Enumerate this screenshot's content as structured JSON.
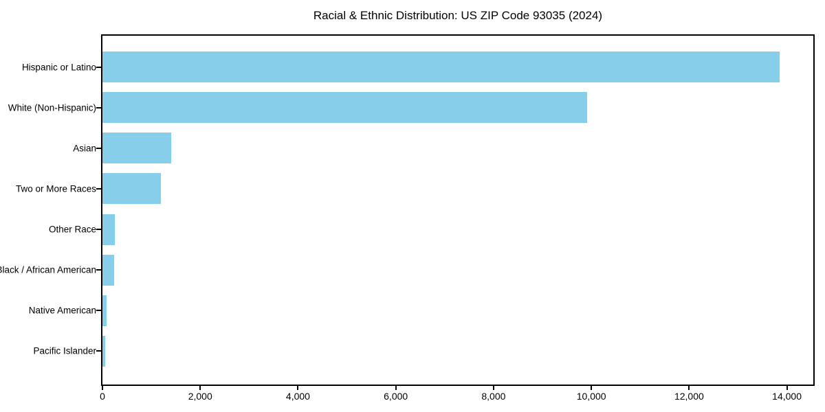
{
  "chart_data": {
    "type": "bar",
    "orientation": "horizontal",
    "title": "Racial & Ethnic Distribution: US ZIP Code 93035 (2024)",
    "categories": [
      "Hispanic or Latino",
      "White (Non-Hispanic)",
      "Asian",
      "Two or More Races",
      "Other Race",
      "Black / African American",
      "Native American",
      "Pacific Islander"
    ],
    "values": [
      13850,
      9910,
      1400,
      1190,
      250,
      235,
      85,
      55
    ],
    "xlabel": "",
    "ylabel": "",
    "xlim": [
      0,
      14540
    ],
    "x_ticks": [
      0,
      2000,
      4000,
      6000,
      8000,
      10000,
      12000,
      14000
    ],
    "x_tick_labels": [
      "0",
      "2,000",
      "4,000",
      "6,000",
      "8,000",
      "10,000",
      "12,000",
      "14,000"
    ],
    "bar_color": "#87CEEB",
    "axis_color": "#000000",
    "background_color": "#FFFFFF",
    "grid": false,
    "legend": "none"
  }
}
